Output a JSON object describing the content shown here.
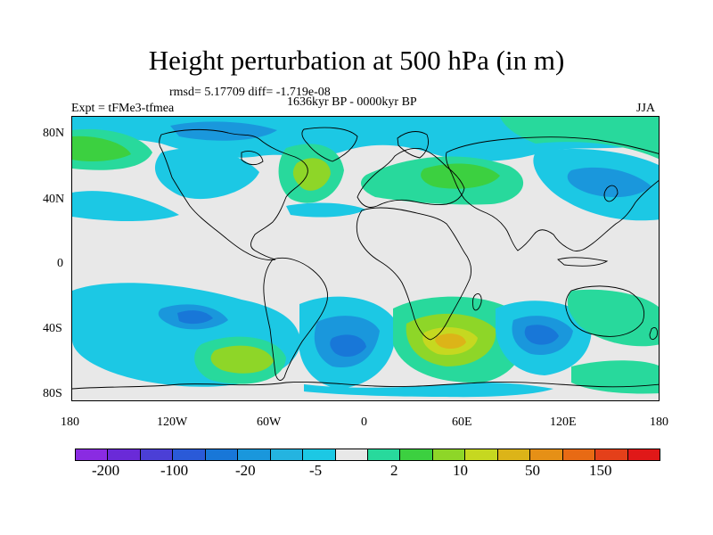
{
  "title": "Height perturbation at 500 hPa (in m)",
  "stats_line": "rmsd= 5.17709 diff= -1.719e-08",
  "period": "1636kyr BP - 0000kyr BP",
  "experiment": "Expt = tFMe3-tfmea",
  "season": "JJA",
  "y_ticks": [
    "80N",
    "40N",
    "0",
    "40S",
    "80S"
  ],
  "x_ticks": [
    "180",
    "120W",
    "60W",
    "0",
    "60E",
    "120E",
    "180"
  ],
  "legend": {
    "labels": [
      "-200",
      "-100",
      "-20",
      "-5",
      "2",
      "10",
      "50",
      "150"
    ],
    "colors": [
      "#8a2be2",
      "#6a2ad8",
      "#4b3fd6",
      "#2a5ad8",
      "#1877d8",
      "#1a97dc",
      "#24b4e0",
      "#1cc8e4",
      "#e8e8e8",
      "#28d99c",
      "#3cd040",
      "#8ed628",
      "#c6d820",
      "#dcb418",
      "#e69016",
      "#e86a14",
      "#e4401a",
      "#e01818"
    ]
  },
  "field_colors": {
    "ocean_bg": "#e8e8e8",
    "neg_light": "#1cc8e4",
    "neg_mid": "#1a97dc",
    "neg_deep": "#1877d8",
    "pos_light": "#28d99c",
    "pos_mid": "#3cd040",
    "pos_high": "#8ed628",
    "pos_peak": "#c6d820",
    "pos_max": "#dcb418"
  }
}
